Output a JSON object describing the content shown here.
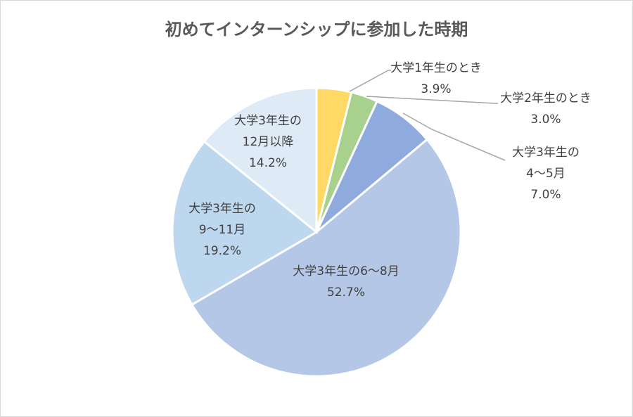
{
  "chart_data": {
    "type": "pie",
    "title": "初めてインターンシップに参加した時期",
    "start_angle_deg": 0,
    "direction": "clockwise",
    "slices": [
      {
        "key": "y1",
        "label_lines": [
          "大学1年生のとき"
        ],
        "value": 3.9,
        "value_label": "3.9%",
        "color": "#ffd966"
      },
      {
        "key": "y2",
        "label_lines": [
          "大学2年生のとき"
        ],
        "value": 3.0,
        "value_label": "3.0%",
        "color": "#a9d18e"
      },
      {
        "key": "y3a",
        "label_lines": [
          "大学3年生の",
          "4～5月"
        ],
        "value": 7.0,
        "value_label": "7.0%",
        "color": "#8faadc"
      },
      {
        "key": "y3b",
        "label_lines": [
          "大学3年生の6～8月"
        ],
        "value": 52.7,
        "value_label": "52.7%",
        "color": "#b4c7e7"
      },
      {
        "key": "y3c",
        "label_lines": [
          "大学3年生の",
          "9～11月"
        ],
        "value": 19.2,
        "value_label": "19.2%",
        "color": "#bdd7ee"
      },
      {
        "key": "y3d",
        "label_lines": [
          "大学3年生の",
          "12月以降"
        ],
        "value": 14.2,
        "value_label": "14.2%",
        "color": "#deebf7"
      }
    ]
  }
}
